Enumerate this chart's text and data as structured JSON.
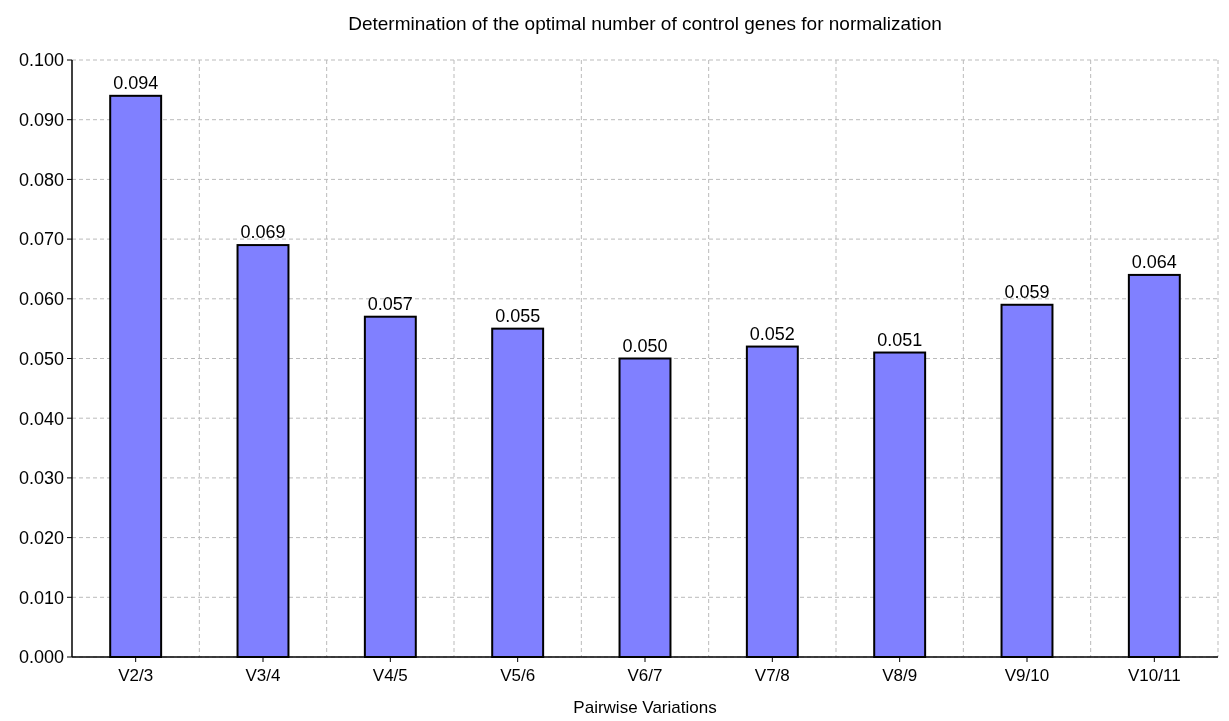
{
  "chart_data": {
    "type": "bar",
    "title": "Determination of the optimal number of control genes for normalization",
    "xlabel": "Pairwise Variations",
    "categories": [
      "V2/3",
      "V3/4",
      "V4/5",
      "V5/6",
      "V6/7",
      "V7/8",
      "V8/9",
      "V9/10",
      "V10/11"
    ],
    "values": [
      0.094,
      0.069,
      0.057,
      0.055,
      0.05,
      0.052,
      0.051,
      0.059,
      0.064
    ],
    "color": "#8080ff",
    "ylim": [
      0,
      0.1
    ],
    "yticks": [
      {
        "value": 0,
        "label": "0.000"
      },
      {
        "value": 0.01,
        "label": "0.010"
      },
      {
        "value": 0.02,
        "label": "0.020"
      },
      {
        "value": 0.03,
        "label": "0.030"
      },
      {
        "value": 0.04,
        "label": "0.040"
      },
      {
        "value": 0.05,
        "label": "0.050"
      },
      {
        "value": 0.06,
        "label": "0.060"
      },
      {
        "value": 0.07,
        "label": "0.070"
      },
      {
        "value": 0.08,
        "label": "0.080"
      },
      {
        "value": 0.09,
        "label": "0.090"
      },
      {
        "value": 0.1,
        "label": "0.100"
      }
    ],
    "value_labels": [
      "0.094",
      "0.069",
      "0.057",
      "0.055",
      "0.050",
      "0.052",
      "0.051",
      "0.059",
      "0.064"
    ],
    "grid": true
  }
}
